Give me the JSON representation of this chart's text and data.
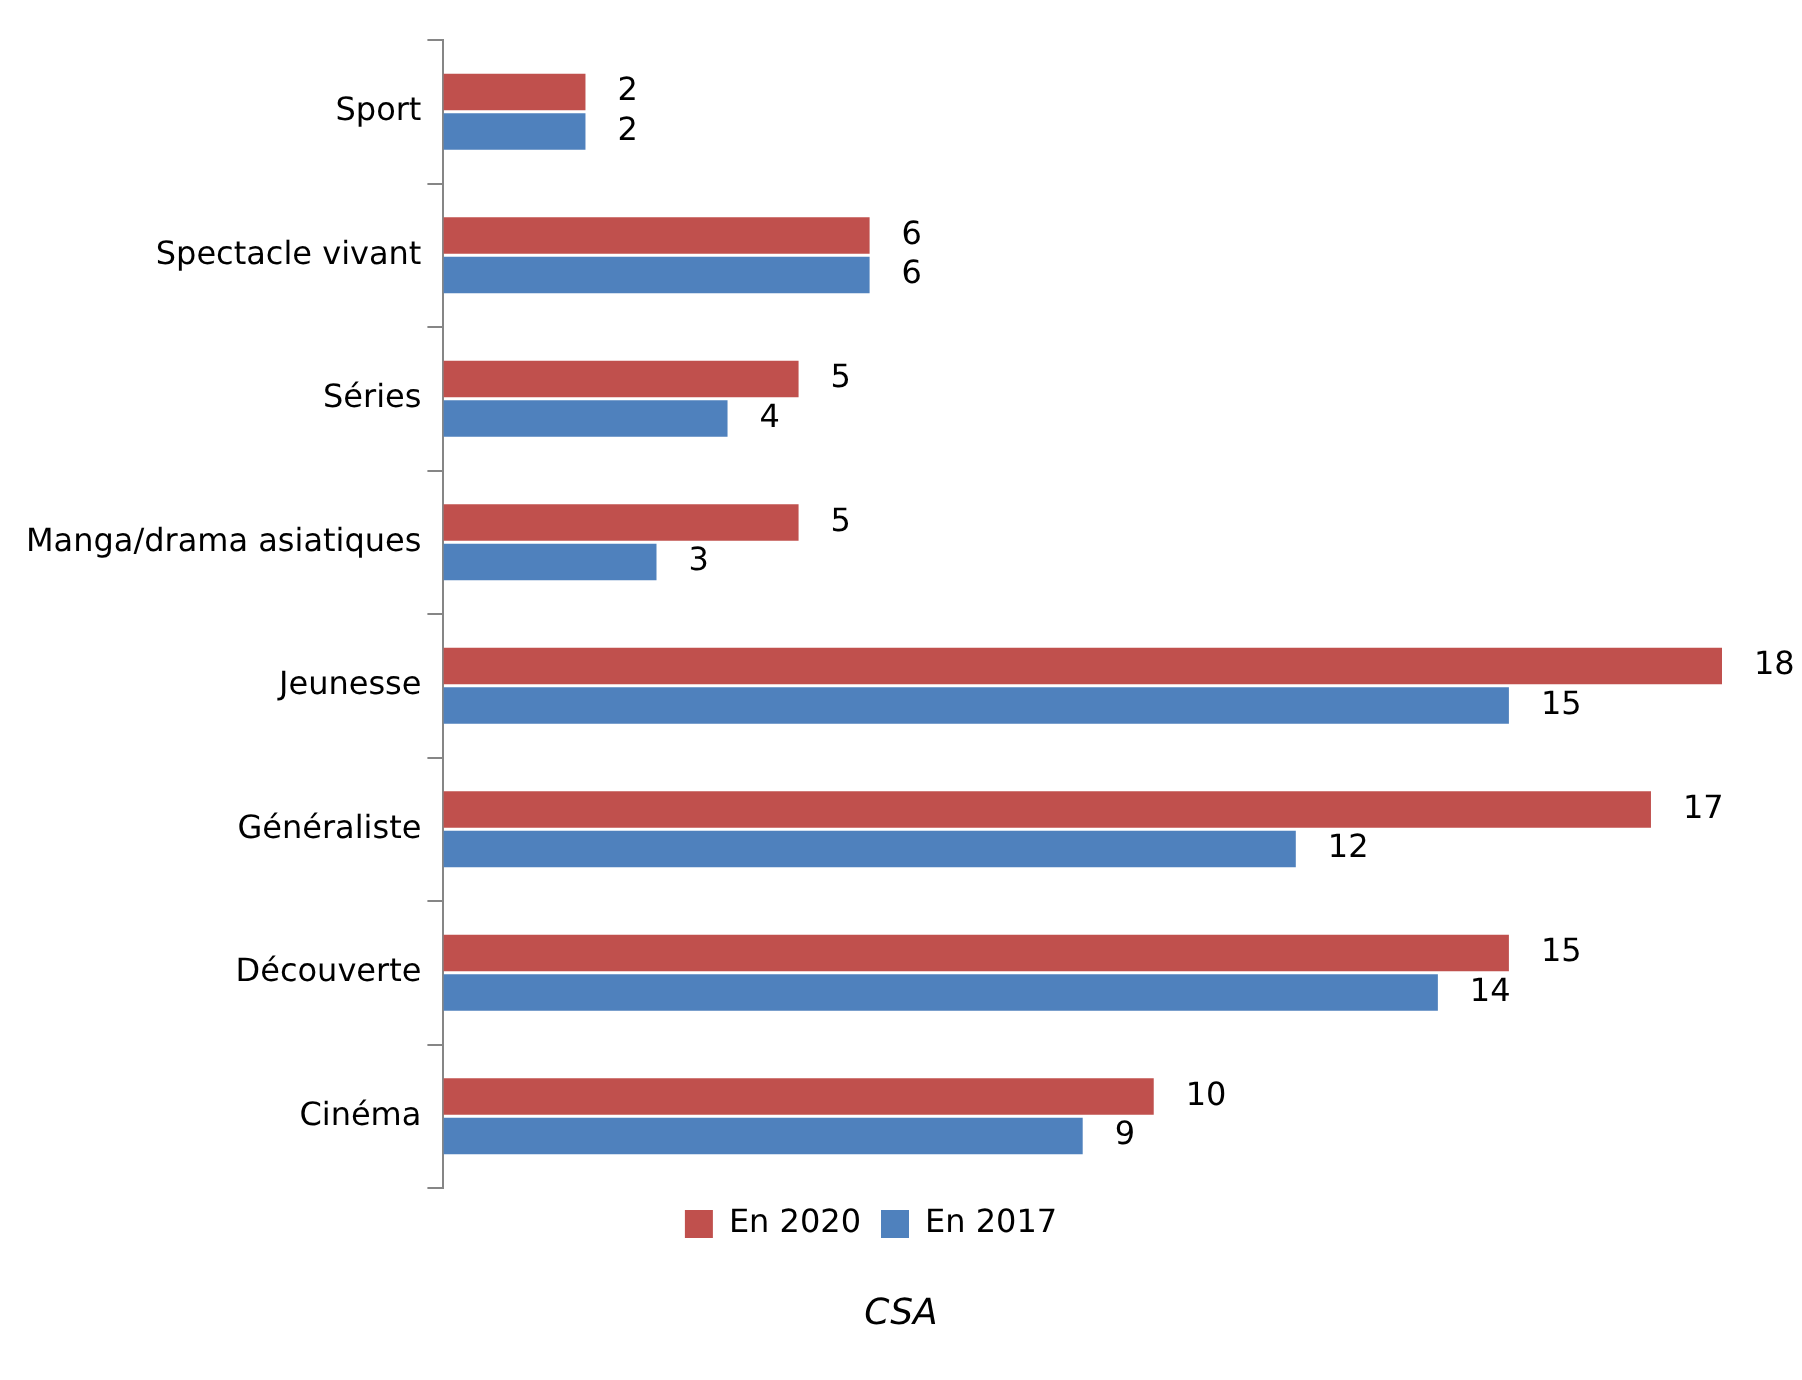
{
  "chart_data": {
    "type": "bar",
    "orientation": "horizontal",
    "categories": [
      "Sport",
      "Spectacle vivant",
      "Séries",
      "Manga/drama asiatiques",
      "Jeunesse",
      "Généraliste",
      "Découverte",
      "Cinéma"
    ],
    "series": [
      {
        "name": "En 2020",
        "color": "#c0504d",
        "values": [
          2,
          6,
          5,
          5,
          18,
          17,
          15,
          10
        ]
      },
      {
        "name": "En 2017",
        "color": "#4f81bd",
        "values": [
          2,
          6,
          4,
          3,
          15,
          12,
          14,
          9
        ]
      }
    ],
    "data_labels": true,
    "legend": "bottom",
    "tick_labels": "y",
    "annotations": [
      "CSA"
    ]
  }
}
